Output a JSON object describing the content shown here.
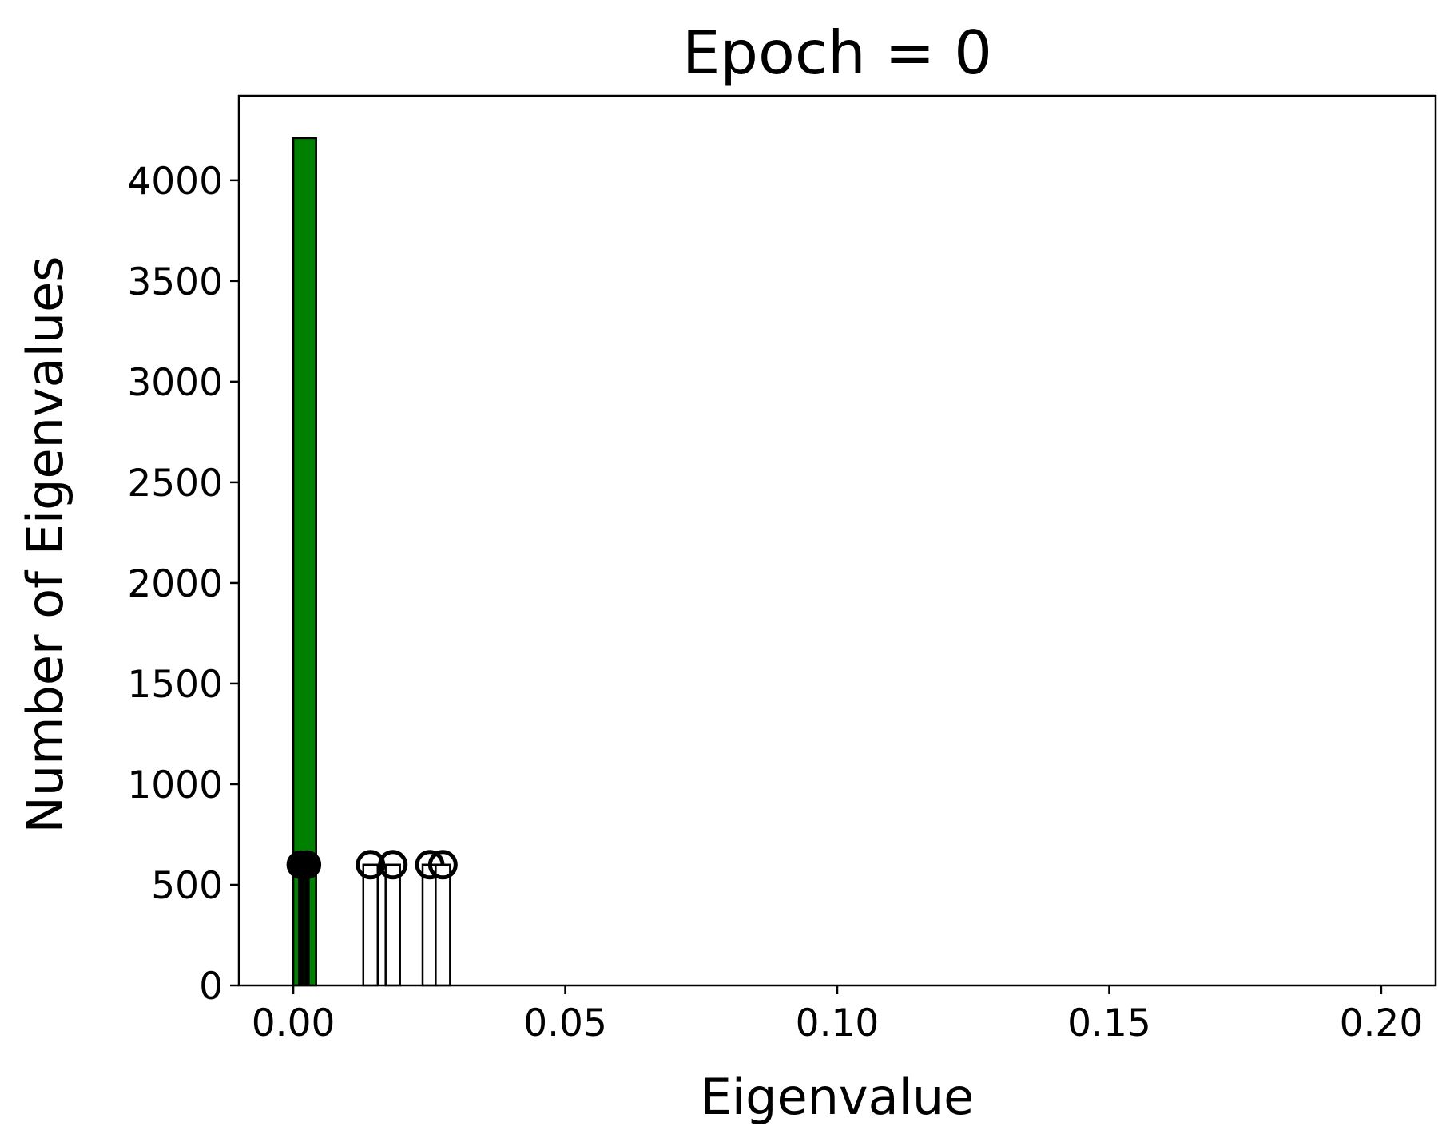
{
  "chart_data": {
    "type": "bar",
    "title": "Epoch = 0",
    "xlabel": "Eigenvalue",
    "ylabel": "Number of Eigenvalues",
    "xlim": [
      -0.01,
      0.21
    ],
    "ylim": [
      0,
      4420
    ],
    "xticks": [
      0.0,
      0.05,
      0.1,
      0.15,
      0.2
    ],
    "xtick_labels": [
      "0.00",
      "0.05",
      "0.10",
      "0.15",
      "0.20"
    ],
    "yticks": [
      0,
      500,
      1000,
      1500,
      2000,
      2500,
      3000,
      3500,
      4000
    ],
    "ytick_labels": [
      "0",
      "500",
      "1000",
      "1500",
      "2000",
      "2500",
      "3000",
      "3500",
      "4000"
    ],
    "grid": false,
    "histogram": {
      "bins": [
        {
          "x0": 0.0,
          "x1": 0.0042,
          "count": 4210
        }
      ],
      "color": "#008000",
      "edgecolor": "#000000"
    },
    "markers": {
      "value": 600,
      "points": [
        {
          "x": 0.0014,
          "style": "filled"
        },
        {
          "x": 0.0025,
          "style": "filled"
        },
        {
          "x": 0.0142,
          "style": "open"
        },
        {
          "x": 0.0183,
          "style": "open"
        },
        {
          "x": 0.0251,
          "style": "open"
        },
        {
          "x": 0.0275,
          "style": "open"
        }
      ]
    }
  }
}
